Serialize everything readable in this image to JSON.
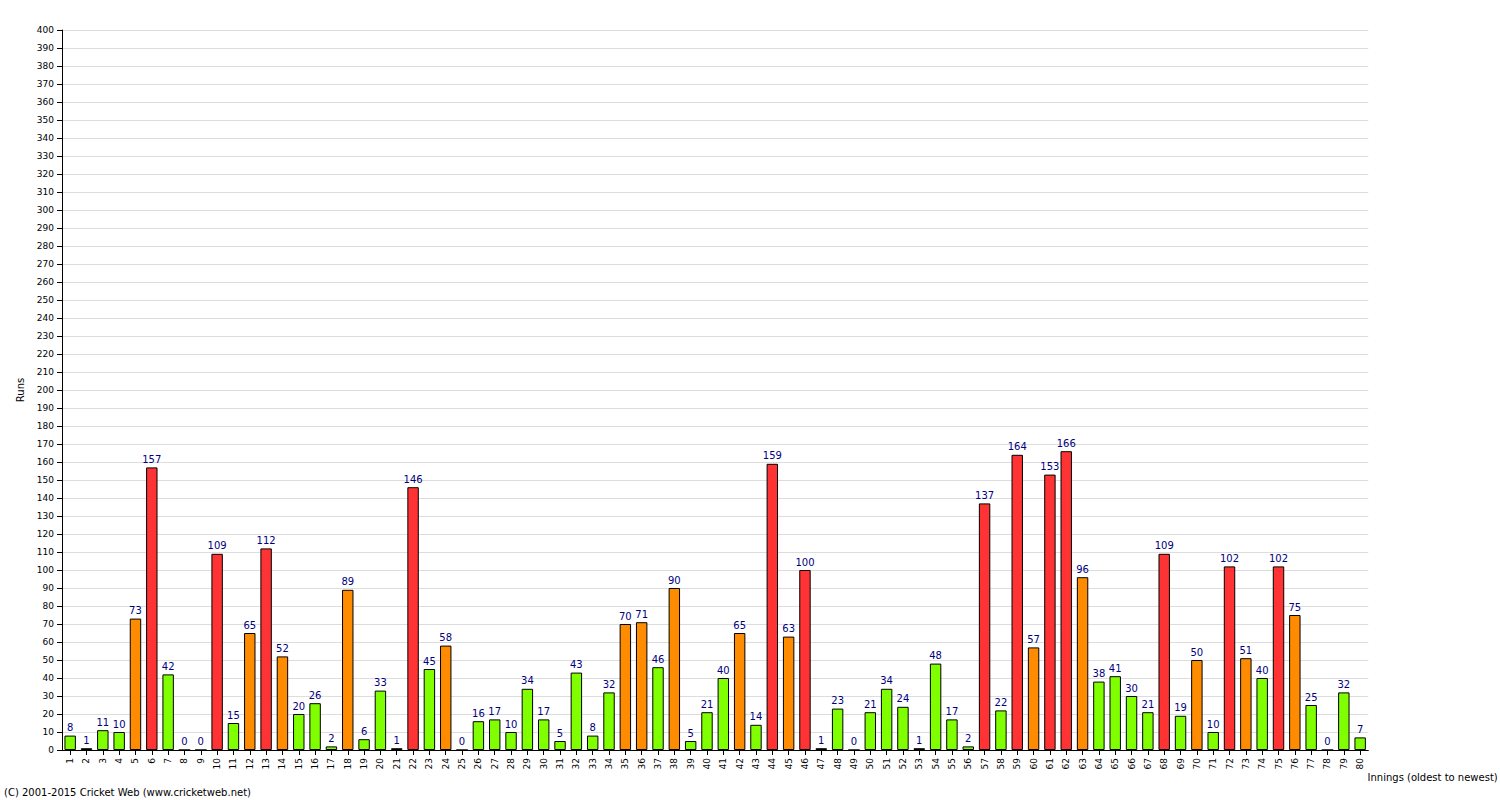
{
  "chart_data": {
    "type": "bar",
    "y_label": "Runs",
    "x_label": "Innings (oldest to newest)",
    "annotation": "(C) 2001-2015 Cricket Web (www.cricketweb.net)",
    "categories": [
      "1",
      "2",
      "3",
      "4",
      "5",
      "6",
      "7",
      "8",
      "9",
      "10",
      "11",
      "12",
      "13",
      "14",
      "15",
      "16",
      "17",
      "18",
      "19",
      "20",
      "21",
      "22",
      "23",
      "24",
      "25",
      "26",
      "27",
      "28",
      "29",
      "30",
      "31",
      "32",
      "33",
      "34",
      "35",
      "36",
      "37",
      "38",
      "39",
      "40",
      "41",
      "42",
      "43",
      "44",
      "45",
      "46",
      "47",
      "48",
      "49",
      "50",
      "51",
      "52",
      "53",
      "54",
      "55",
      "56",
      "57",
      "58",
      "59",
      "60",
      "61",
      "62",
      "63",
      "64",
      "65",
      "66",
      "67",
      "68",
      "69",
      "70",
      "71",
      "72",
      "73",
      "74",
      "75",
      "76",
      "77",
      "78",
      "79",
      "80"
    ],
    "values": [
      8,
      1,
      11,
      10,
      73,
      157,
      42,
      0,
      0,
      109,
      15,
      65,
      112,
      52,
      20,
      26,
      2,
      89,
      6,
      33,
      1,
      146,
      45,
      58,
      0,
      16,
      17,
      10,
      34,
      17,
      5,
      43,
      8,
      32,
      70,
      71,
      46,
      90,
      5,
      21,
      40,
      65,
      14,
      159,
      63,
      100,
      1,
      23,
      0,
      21,
      34,
      24,
      1,
      48,
      17,
      2,
      137,
      22,
      164,
      57,
      153,
      166,
      96,
      38,
      41,
      30,
      21,
      109,
      19,
      50,
      10,
      102,
      51,
      40,
      102,
      75,
      25,
      0,
      32,
      7
    ],
    "colors": [
      "#80ff00",
      "#80ff00",
      "#80ff00",
      "#80ff00",
      "#ff8c00",
      "#ff3333",
      "#80ff00",
      "#80ff00",
      "#80ff00",
      "#ff3333",
      "#80ff00",
      "#ff8c00",
      "#ff3333",
      "#ff8c00",
      "#80ff00",
      "#80ff00",
      "#80ff00",
      "#ff8c00",
      "#80ff00",
      "#80ff00",
      "#80ff00",
      "#ff3333",
      "#80ff00",
      "#ff8c00",
      "#80ff00",
      "#80ff00",
      "#80ff00",
      "#80ff00",
      "#80ff00",
      "#80ff00",
      "#80ff00",
      "#80ff00",
      "#80ff00",
      "#80ff00",
      "#ff8c00",
      "#ff8c00",
      "#80ff00",
      "#ff8c00",
      "#80ff00",
      "#80ff00",
      "#80ff00",
      "#ff8c00",
      "#80ff00",
      "#ff3333",
      "#ff8c00",
      "#ff3333",
      "#80ff00",
      "#80ff00",
      "#80ff00",
      "#80ff00",
      "#80ff00",
      "#80ff00",
      "#80ff00",
      "#80ff00",
      "#80ff00",
      "#80ff00",
      "#ff3333",
      "#80ff00",
      "#ff3333",
      "#ff8c00",
      "#ff3333",
      "#ff3333",
      "#ff8c00",
      "#80ff00",
      "#80ff00",
      "#80ff00",
      "#80ff00",
      "#ff3333",
      "#80ff00",
      "#ff8c00",
      "#80ff00",
      "#ff3333",
      "#ff8c00",
      "#80ff00",
      "#ff3333",
      "#ff8c00",
      "#80ff00",
      "#80ff00",
      "#80ff00",
      "#80ff00"
    ],
    "ylim": [
      0,
      400
    ],
    "yticks": [
      0,
      10,
      20,
      30,
      40,
      50,
      60,
      70,
      80,
      90,
      100,
      110,
      120,
      130,
      140,
      150,
      160,
      170,
      180,
      190,
      200,
      210,
      220,
      230,
      240,
      250,
      260,
      270,
      280,
      290,
      300,
      310,
      320,
      330,
      340,
      350,
      360,
      370,
      380,
      390,
      400
    ],
    "grid": true,
    "data_labels": true
  }
}
